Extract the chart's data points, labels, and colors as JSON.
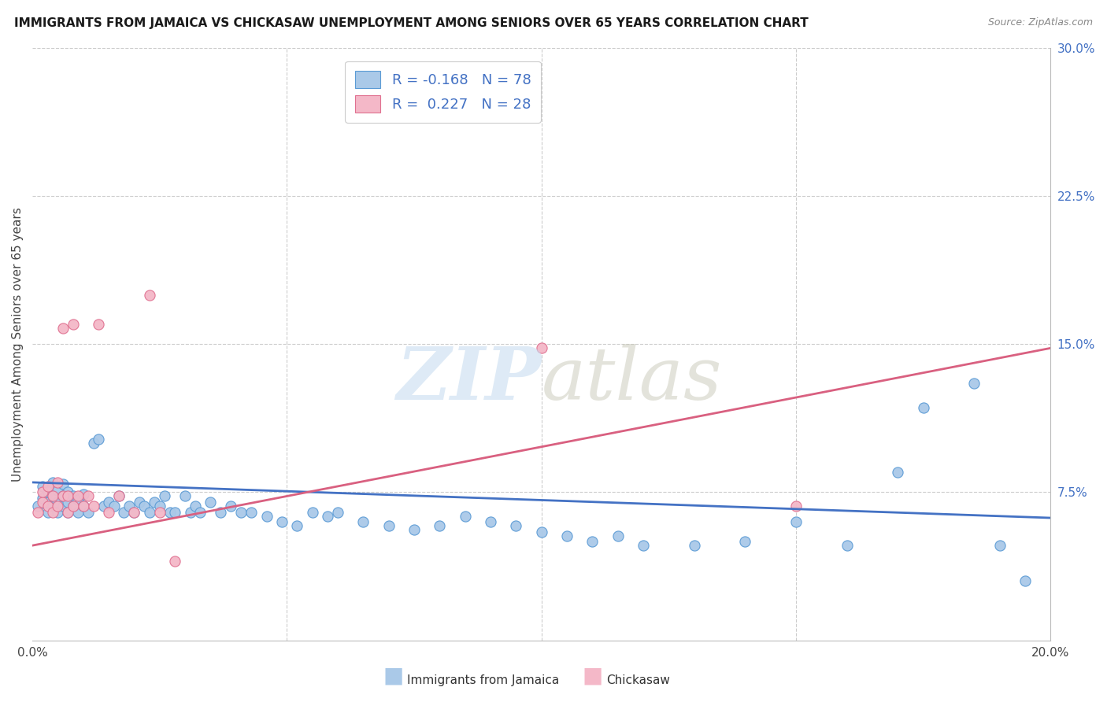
{
  "title": "IMMIGRANTS FROM JAMAICA VS CHICKASAW UNEMPLOYMENT AMONG SENIORS OVER 65 YEARS CORRELATION CHART",
  "source": "Source: ZipAtlas.com",
  "ylabel": "Unemployment Among Seniors over 65 years",
  "xlim": [
    0.0,
    0.2
  ],
  "ylim": [
    0.0,
    0.3
  ],
  "yticks_right": [
    0.075,
    0.15,
    0.225,
    0.3
  ],
  "ytick_labels_right": [
    "7.5%",
    "15.0%",
    "22.5%",
    "30.0%"
  ],
  "blue_color": "#aac9e8",
  "blue_edge": "#5b9bd5",
  "blue_line": "#4472c4",
  "pink_color": "#f4b8c8",
  "pink_edge": "#e07090",
  "pink_line": "#d96080",
  "blue_R": -0.168,
  "blue_N": 78,
  "pink_R": 0.227,
  "pink_N": 28,
  "background_color": "#ffffff",
  "blue_trend_x": [
    0.0,
    0.2
  ],
  "blue_trend_y": [
    0.08,
    0.062
  ],
  "pink_trend_x": [
    0.0,
    0.2
  ],
  "pink_trend_y": [
    0.048,
    0.148
  ],
  "blue_scatter_x": [
    0.001,
    0.002,
    0.002,
    0.003,
    0.003,
    0.003,
    0.004,
    0.004,
    0.004,
    0.005,
    0.005,
    0.005,
    0.006,
    0.006,
    0.006,
    0.007,
    0.007,
    0.007,
    0.008,
    0.008,
    0.009,
    0.009,
    0.01,
    0.01,
    0.011,
    0.012,
    0.013,
    0.014,
    0.015,
    0.016,
    0.017,
    0.018,
    0.019,
    0.02,
    0.021,
    0.022,
    0.023,
    0.024,
    0.025,
    0.026,
    0.027,
    0.028,
    0.03,
    0.031,
    0.032,
    0.033,
    0.035,
    0.037,
    0.039,
    0.041,
    0.043,
    0.046,
    0.049,
    0.052,
    0.055,
    0.058,
    0.06,
    0.065,
    0.07,
    0.075,
    0.08,
    0.085,
    0.09,
    0.095,
    0.1,
    0.105,
    0.11,
    0.115,
    0.12,
    0.13,
    0.14,
    0.15,
    0.16,
    0.17,
    0.175,
    0.185,
    0.19,
    0.195
  ],
  "blue_scatter_y": [
    0.068,
    0.072,
    0.078,
    0.065,
    0.07,
    0.075,
    0.068,
    0.073,
    0.08,
    0.065,
    0.07,
    0.076,
    0.068,
    0.073,
    0.079,
    0.065,
    0.07,
    0.075,
    0.068,
    0.073,
    0.065,
    0.071,
    0.068,
    0.074,
    0.065,
    0.1,
    0.102,
    0.068,
    0.07,
    0.068,
    0.073,
    0.065,
    0.068,
    0.065,
    0.07,
    0.068,
    0.065,
    0.07,
    0.068,
    0.073,
    0.065,
    0.065,
    0.073,
    0.065,
    0.068,
    0.065,
    0.07,
    0.065,
    0.068,
    0.065,
    0.065,
    0.063,
    0.06,
    0.058,
    0.065,
    0.063,
    0.065,
    0.06,
    0.058,
    0.056,
    0.058,
    0.063,
    0.06,
    0.058,
    0.055,
    0.053,
    0.05,
    0.053,
    0.048,
    0.048,
    0.05,
    0.06,
    0.048,
    0.085,
    0.118,
    0.13,
    0.048,
    0.03
  ],
  "pink_scatter_x": [
    0.001,
    0.002,
    0.002,
    0.003,
    0.003,
    0.004,
    0.004,
    0.005,
    0.005,
    0.006,
    0.006,
    0.007,
    0.007,
    0.008,
    0.008,
    0.009,
    0.01,
    0.011,
    0.012,
    0.013,
    0.015,
    0.017,
    0.02,
    0.023,
    0.025,
    0.028,
    0.1,
    0.15
  ],
  "pink_scatter_y": [
    0.065,
    0.07,
    0.075,
    0.068,
    0.078,
    0.065,
    0.073,
    0.08,
    0.068,
    0.073,
    0.158,
    0.065,
    0.073,
    0.068,
    0.16,
    0.073,
    0.068,
    0.073,
    0.068,
    0.16,
    0.065,
    0.073,
    0.065,
    0.175,
    0.065,
    0.04,
    0.148,
    0.068
  ]
}
